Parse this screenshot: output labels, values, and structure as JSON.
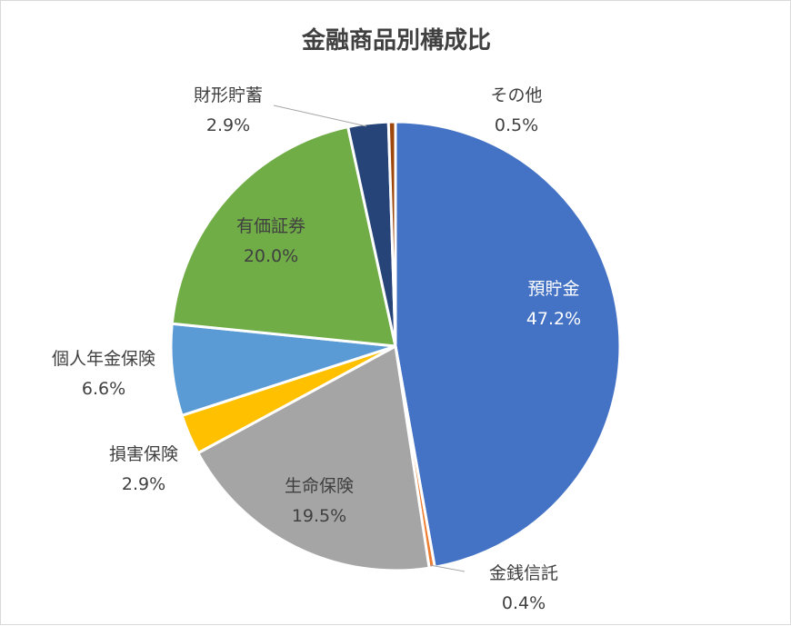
{
  "chart_data": {
    "type": "pie",
    "title": "金融商品別構成比",
    "start_angle_deg": 0,
    "direction": "clockwise",
    "categories": [
      "預貯金",
      "金銭信託",
      "生命保険",
      "損害保険",
      "個人年金保険",
      "有価証券",
      "財形貯蓄",
      "その他"
    ],
    "values": [
      47.2,
      0.4,
      19.5,
      2.9,
      6.6,
      20.0,
      2.9,
      0.5
    ],
    "value_labels": [
      "47.2%",
      "0.4%",
      "19.5%",
      "2.9%",
      "6.6%",
      "20.0%",
      "2.9%",
      "0.5%"
    ],
    "colors": [
      "#4472C4",
      "#ED7D31",
      "#A5A5A5",
      "#FFC000",
      "#5B9BD5",
      "#70AD47",
      "#264478",
      "#9E480E"
    ],
    "label_colors": [
      "#ffffff",
      "#404040",
      "#404040",
      "#404040",
      "#404040",
      "#404040",
      "#404040",
      "#404040"
    ],
    "legend": "none"
  }
}
